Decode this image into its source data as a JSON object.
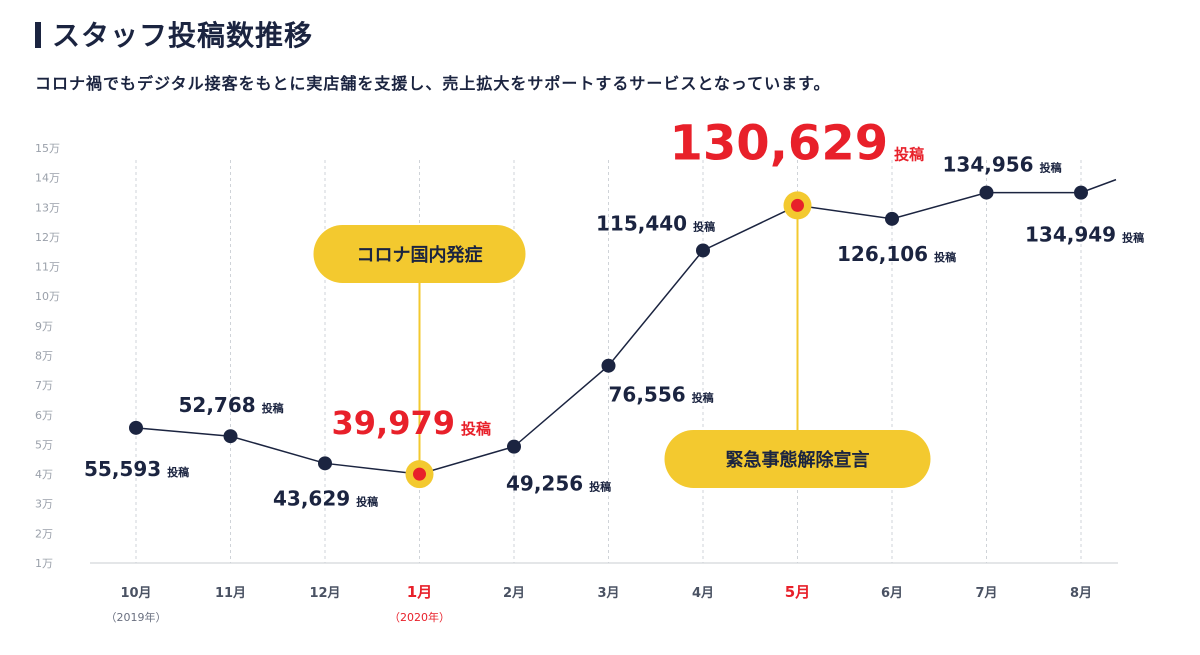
{
  "header": {
    "title": "スタッフ投稿数推移",
    "subtitle": "コロナ禍でもデジタル接客をもとに実店舗を支援し、売上拡大をサポートするサービスとなっています。"
  },
  "chart_data": {
    "type": "line",
    "title": "スタッフ投稿数推移",
    "ylim": [
      10000,
      150000
    ],
    "y_ticks": [
      "1万",
      "2万",
      "3万",
      "4万",
      "5万",
      "6万",
      "7万",
      "8万",
      "9万",
      "10万",
      "11万",
      "12万",
      "13万",
      "14万",
      "15万"
    ],
    "categories": [
      "10月",
      "11月",
      "12月",
      "1月",
      "2月",
      "3月",
      "4月",
      "5月",
      "6月",
      "7月",
      "8月"
    ],
    "category_sublabels": [
      "（2019年）",
      "",
      "",
      "（2020年）",
      "",
      "",
      "",
      "",
      "",
      "",
      ""
    ],
    "highlight_categories": [
      3,
      7
    ],
    "series": [
      {
        "values": [
          55593,
          52768,
          43629,
          39979,
          49256,
          76556,
          115440,
          130629,
          126106,
          134956,
          134949
        ]
      }
    ],
    "data_labels": [
      "55,593",
      "52,768",
      "43,629",
      "39,979",
      "49,256",
      "76,556",
      "115,440",
      "130,629",
      "126,106",
      "134,956",
      "134,949"
    ],
    "data_label_unit": "投稿",
    "annotations": [
      {
        "text": "コロナ国内発症",
        "category_index": 3
      },
      {
        "text": "緊急事態解除宣言",
        "category_index": 7
      }
    ],
    "grid": true,
    "colors": {
      "line": "#1b2440",
      "point": "#1b2440",
      "highlight_point": "#e8202a",
      "highlight_halo": "#f3c92f",
      "badge": "#f3c92f",
      "highlight_text": "#e8202a",
      "grid": "#cfd3d8"
    }
  }
}
